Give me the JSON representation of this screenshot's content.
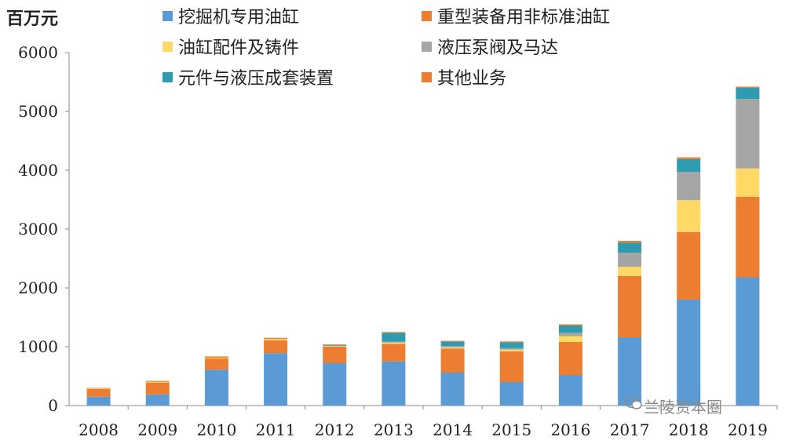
{
  "chart_data": {
    "type": "bar",
    "stacked": true,
    "unit_label": "百万元",
    "categories": [
      "2008",
      "2009",
      "2010",
      "2011",
      "2012",
      "2013",
      "2014",
      "2015",
      "2016",
      "2017",
      "2018",
      "2019"
    ],
    "ylim": [
      0,
      6000
    ],
    "yticks": [
      0,
      1000,
      2000,
      3000,
      4000,
      5000,
      6000
    ],
    "grid": false,
    "legend_position": "top",
    "series": [
      {
        "name": "挖掘机专用油缸",
        "color": "#5b9bd5",
        "values": [
          150,
          190,
          610,
          890,
          720,
          750,
          560,
          400,
          520,
          1160,
          1800,
          2180
        ]
      },
      {
        "name": "重型装备用非标准油缸",
        "color": "#ed7d31",
        "values": [
          130,
          200,
          190,
          220,
          280,
          300,
          410,
          520,
          560,
          1040,
          1150,
          1370
        ]
      },
      {
        "name": "油缸配件及铸件",
        "color": "#ffd966",
        "values": [
          10,
          15,
          15,
          20,
          10,
          20,
          20,
          30,
          100,
          160,
          540,
          480
        ]
      },
      {
        "name": "液压泵阀及马达",
        "color": "#a5a5a5",
        "values": [
          0,
          0,
          0,
          0,
          10,
          15,
          20,
          25,
          60,
          240,
          480,
          1180
        ]
      },
      {
        "name": "元件与液压成套装置",
        "color": "#2e9bb0",
        "values": [
          0,
          0,
          0,
          0,
          10,
          150,
          80,
          100,
          120,
          170,
          220,
          190
        ]
      },
      {
        "name": "其他业务",
        "color": "#ed7d31",
        "values": [
          10,
          15,
          20,
          20,
          10,
          15,
          10,
          15,
          20,
          30,
          30,
          20
        ]
      }
    ]
  },
  "watermark": {
    "text": "兰陵资本圈"
  }
}
